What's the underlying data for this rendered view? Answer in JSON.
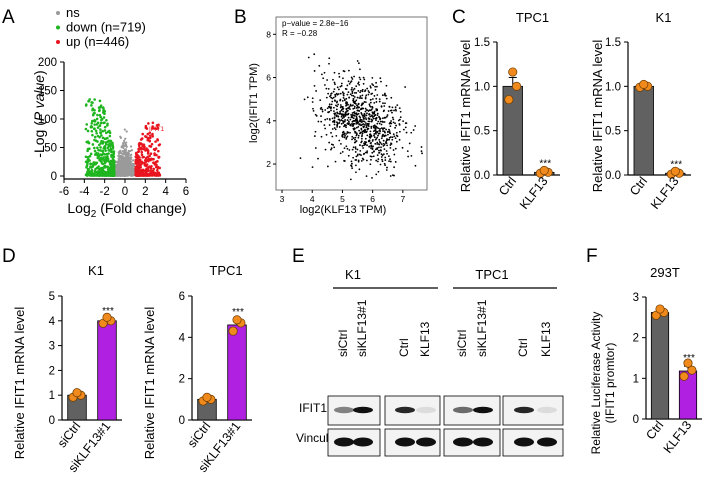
{
  "colors": {
    "ns": "#9a9a9a",
    "down": "#1fb51f",
    "up": "#e8141e",
    "ctrl_bar": "#616161",
    "purple_bar": "#b020e0",
    "dot": "#f08a1c"
  },
  "panels": {
    "A": {
      "letter": "A",
      "chart_data": {
        "type": "scatter",
        "legend": [
          {
            "label": "ns",
            "color": "#9a9a9a"
          },
          {
            "label": "down (n=719)",
            "color": "#1fb51f"
          },
          {
            "label": "up (n=446)",
            "color": "#e8141e"
          }
        ],
        "legend_position": "top-left",
        "xlabel_main": "Log",
        "xlabel_sub": "2",
        "xlabel_rest": " (Fold change)",
        "ylabel_pre": "-Log (",
        "ylabel_italic": "P value",
        "ylabel_post": ")",
        "xticks": [
          -6,
          -4,
          -2,
          0,
          2,
          4,
          6
        ],
        "yticks": [
          0,
          50,
          100,
          150,
          200
        ],
        "xlim": [
          -6,
          6
        ],
        "ylim": [
          0,
          200
        ],
        "annotation": "IFIT1"
      }
    },
    "B": {
      "letter": "B",
      "chart_data": {
        "type": "scatter",
        "annotation_lines": [
          "p−value = 2.8e−16",
          "R = −0.28"
        ],
        "xlabel": "log2(KLF13 TPM)",
        "ylabel": "log2(IFIT1 TPM)",
        "xticks": [
          3,
          4,
          5,
          6,
          7
        ],
        "yticks": [
          2,
          4,
          6,
          8
        ],
        "xlim": [
          2.8,
          7.8
        ],
        "ylim": [
          0.8,
          8.8
        ]
      }
    },
    "C": {
      "letter": "C",
      "ylabel": "Relative IFIT1 mRNA level",
      "charts": [
        {
          "title": "TPC1",
          "type": "bar",
          "categories": [
            "Ctrl",
            "KLF13"
          ],
          "values": [
            1.0,
            0.03
          ],
          "errors": [
            0.1,
            0.01
          ],
          "points": [
            [
              0.85,
              1.0,
              1.15
            ],
            [
              0.02,
              0.03,
              0.04
            ]
          ],
          "yticks": [
            0.0,
            0.5,
            1.0,
            1.5
          ],
          "ylim": [
            0,
            1.5
          ],
          "significance": "***"
        },
        {
          "title": "K1",
          "type": "bar",
          "categories": [
            "Ctrl",
            "KLF13"
          ],
          "values": [
            1.0,
            0.02
          ],
          "errors": [
            0.01,
            0.01
          ],
          "points": [
            [
              0.99,
              1.0,
              1.01
            ],
            [
              0.01,
              0.02,
              0.03
            ]
          ],
          "yticks": [
            0.0,
            0.5,
            1.0,
            1.5
          ],
          "ylim": [
            0,
            1.5
          ],
          "significance": "***"
        }
      ]
    },
    "D": {
      "letter": "D",
      "ylabel": "Relative IFIT1 mRNA level",
      "charts": [
        {
          "title": "K1",
          "type": "bar",
          "categories": [
            "siCtrl",
            "siKLF13#1"
          ],
          "values": [
            1.0,
            4.0
          ],
          "errors": [
            0.06,
            0.08
          ],
          "points": [
            [
              0.92,
              1.0,
              1.06
            ],
            [
              3.9,
              4.0,
              4.1
            ]
          ],
          "yticks": [
            0,
            1,
            2,
            3,
            4,
            5
          ],
          "ylim": [
            0,
            5
          ],
          "significance": "***"
        },
        {
          "title": "TPC1",
          "type": "bar",
          "categories": [
            "siCtrl",
            "siKLF13#1"
          ],
          "values": [
            1.0,
            4.6
          ],
          "errors": [
            0.06,
            0.25
          ],
          "points": [
            [
              0.92,
              1.0,
              1.05
            ],
            [
              4.3,
              4.7,
              4.8
            ]
          ],
          "yticks": [
            0,
            2,
            4,
            6
          ],
          "ylim": [
            0,
            6
          ],
          "significance": "***"
        }
      ]
    },
    "E": {
      "letter": "E",
      "groups": [
        "K1",
        "TPC1"
      ],
      "lanes": [
        "siCtrl",
        "siKLF13#1",
        "Ctrl",
        "KLF13",
        "siCtrl",
        "siKLF13#1",
        "Ctrl",
        "KLF13"
      ],
      "rows": [
        "IFIT1",
        "Vinculin"
      ],
      "ifit1_intensity": [
        0.5,
        1.0,
        0.9,
        0.1,
        0.6,
        1.0,
        0.9,
        0.1
      ],
      "vinculin_intensity": [
        1.0,
        1.0,
        1.0,
        1.0,
        1.0,
        1.0,
        1.0,
        1.0
      ]
    },
    "F": {
      "letter": "F",
      "title": "293T",
      "ylabel_line1": "Relative Luciferase Activity",
      "ylabel_line2": "(IFIT1 promtor)",
      "chart_data": {
        "type": "bar",
        "categories": [
          "Ctrl",
          "KLF13"
        ],
        "values": [
          2.62,
          1.18
        ],
        "errors": [
          0.06,
          0.12
        ],
        "points": [
          [
            2.55,
            2.62,
            2.68
          ],
          [
            1.05,
            1.2,
            1.35
          ]
        ],
        "yticks": [
          0,
          1,
          2,
          3
        ],
        "ylim": [
          0,
          3
        ],
        "significance": "***"
      }
    }
  }
}
